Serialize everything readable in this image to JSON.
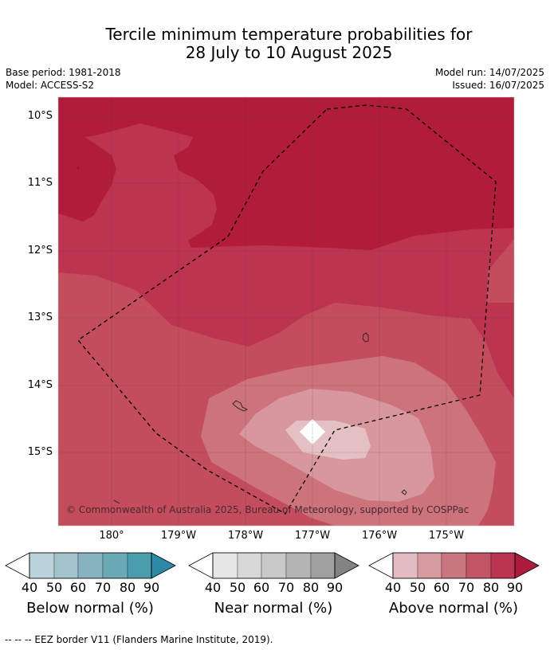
{
  "title": {
    "line1": "Tercile minimum temperature probabilities for",
    "line2": "28 July to 10 August 2025"
  },
  "info": {
    "base_period": "Base period: 1981-2018",
    "model": "Model: ACCESS-S2",
    "model_run": "Model run: 14/07/2025",
    "issued": "Issued: 16/07/2025"
  },
  "map": {
    "lat_labels": [
      "10°S",
      "11°S",
      "12°S",
      "13°S",
      "14°S",
      "15°S"
    ],
    "lon_labels": [
      "180°",
      "179°W",
      "178°W",
      "177°W",
      "176°W",
      "175°W"
    ],
    "copyright": "© Commonwealth of Australia 2025, Bureau of Meteorology, supported by COSPPac",
    "colors": {
      "above_80_90": "#b01c3a",
      "above_70_80": "#bd3450",
      "above_60_70": "#c34c5d",
      "above_50_60": "#cd737c",
      "above_40_50": "#d8979e",
      "above_lt40": "#e4c0c4"
    }
  },
  "colorbars": [
    {
      "name": "below",
      "label": "Below normal (%)",
      "ticks": [
        "40",
        "50",
        "60",
        "70",
        "80",
        "90"
      ],
      "colors": [
        "#bcd3dc",
        "#a3c3cb",
        "#86b3bf",
        "#6aa9b6",
        "#4b9cad",
        "#2b8aa5"
      ]
    },
    {
      "name": "near",
      "label": "Near normal (%)",
      "ticks": [
        "40",
        "50",
        "60",
        "70",
        "80",
        "90"
      ],
      "colors": [
        "#e6e6e6",
        "#d8d8d8",
        "#c9c9c9",
        "#b4b4b4",
        "#a0a0a0",
        "#838383"
      ]
    },
    {
      "name": "above",
      "label": "Above normal (%)",
      "ticks": [
        "40",
        "50",
        "60",
        "70",
        "80",
        "90"
      ],
      "colors": [
        "#e2bcc2",
        "#d69aa0",
        "#ca7680",
        "#c25566",
        "#ba3452",
        "#ad1c3d"
      ]
    }
  ],
  "footnote": "--  --  -- EEZ border V11 (Flanders Marine Institute, 2019)."
}
